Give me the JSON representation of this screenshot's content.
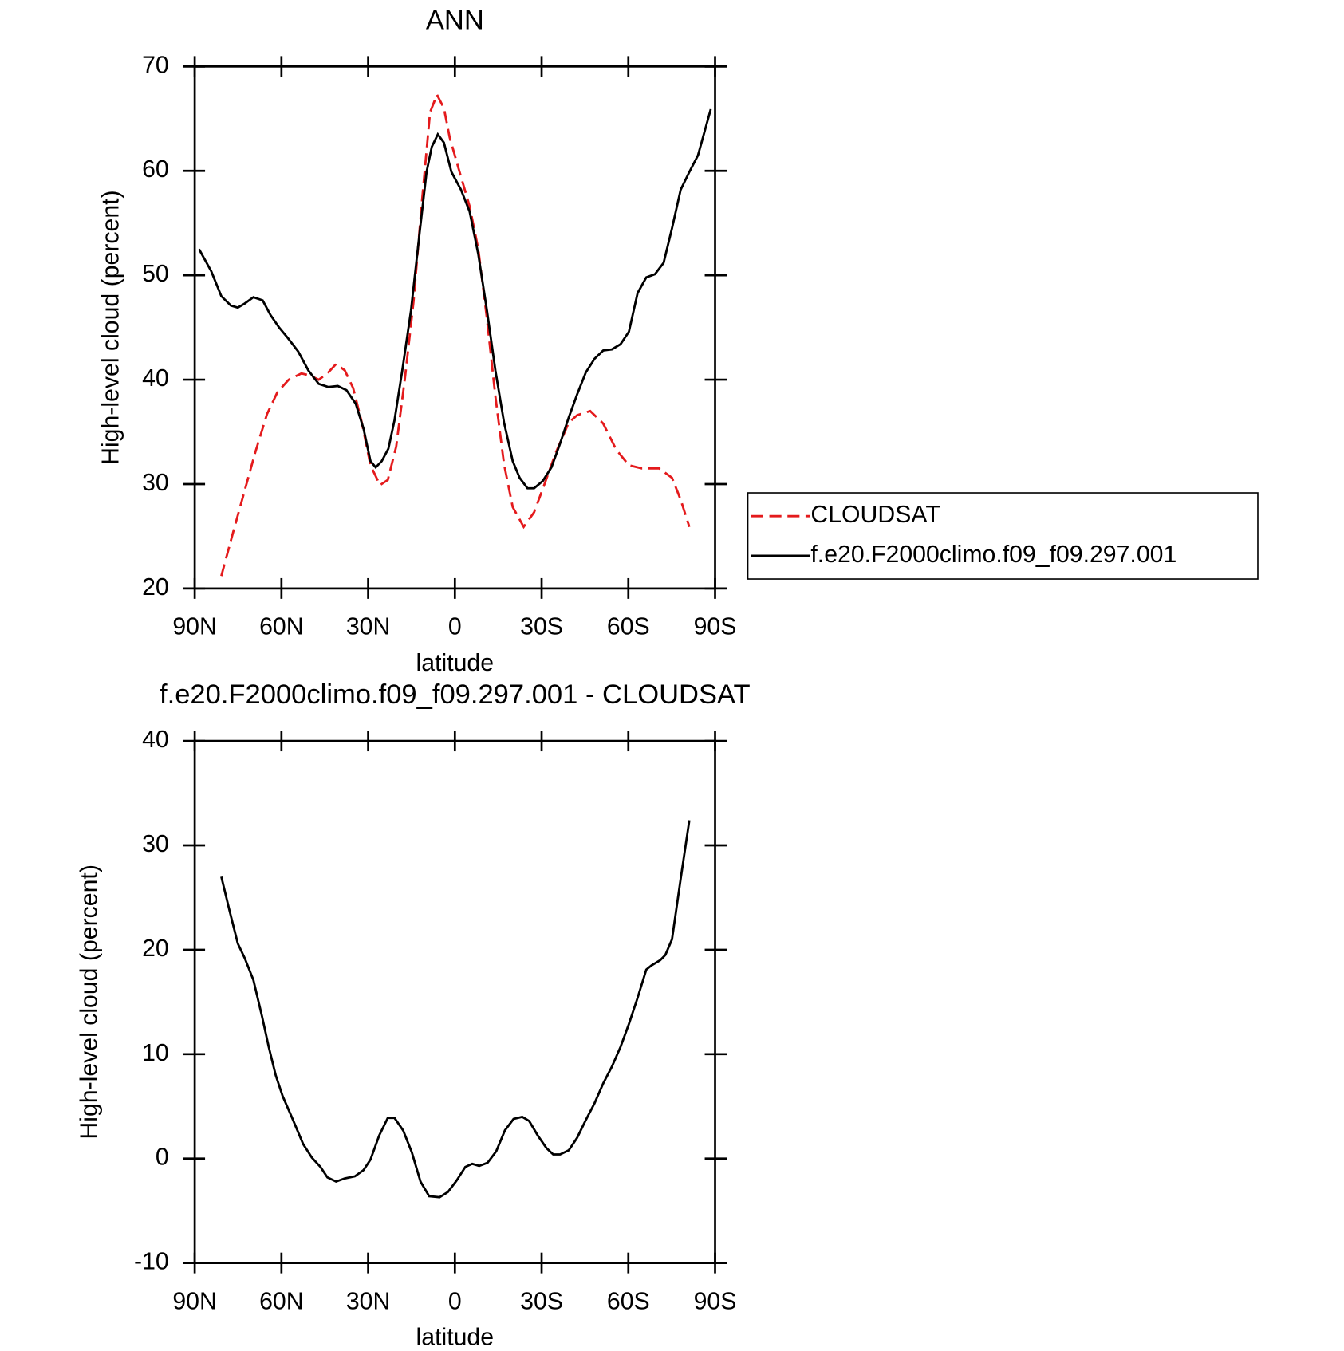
{
  "chart_data": [
    {
      "type": "line",
      "title": "ANN",
      "xlabel": "latitude",
      "ylabel": "High-level cloud (percent)",
      "xlim": [
        90,
        -90
      ],
      "xticks": [
        {
          "value": 90,
          "label": "90N"
        },
        {
          "value": 60,
          "label": "60N"
        },
        {
          "value": 30,
          "label": "30N"
        },
        0,
        {
          "value": -30,
          "label": "30S"
        },
        {
          "value": -60,
          "label": "60S"
        },
        {
          "value": -90,
          "label": "90S"
        }
      ],
      "ylim": [
        20,
        70
      ],
      "yticks": [
        20,
        30,
        40,
        50,
        60,
        70
      ],
      "legend": "right",
      "series": [
        {
          "name": "CLOUDSAT",
          "color": "#e41a1c",
          "dashed": true,
          "x": [
            80.8,
            76.9,
            73.0,
            69.1,
            65.0,
            61.4,
            57.5,
            53.1,
            50.1,
            47.1,
            44.1,
            41.1,
            38.1,
            35.2,
            32.2,
            29.2,
            25.9,
            23.2,
            20.3,
            17.3,
            14.3,
            11.3,
            8.6,
            6.2,
            3.8,
            1.8,
            -1.2,
            -5.1,
            -8.1,
            -11.1,
            -14.0,
            -17.0,
            -20.0,
            -23.8,
            -27.4,
            -31.0,
            -34.9,
            -39.4,
            -42.3,
            -46.8,
            -51.3,
            -55.8,
            -60.2,
            -64.7,
            -70.7,
            -75.1,
            -78.1,
            -81.1
          ],
          "values": [
            21.2,
            25.2,
            29.1,
            33.0,
            36.7,
            38.8,
            40.0,
            40.6,
            40.4,
            40.0,
            40.6,
            41.5,
            40.9,
            39.2,
            35.9,
            31.8,
            29.9,
            30.4,
            33.6,
            40.1,
            47.5,
            57.4,
            65.6,
            67.3,
            66.0,
            63.2,
            60.3,
            56.6,
            52.5,
            45.8,
            38.4,
            31.9,
            27.8,
            25.9,
            27.3,
            30.0,
            33.0,
            35.9,
            36.6,
            37.0,
            35.8,
            33.3,
            31.8,
            31.5,
            31.5,
            30.6,
            28.5,
            25.9
          ]
        },
        {
          "name": "f.e20.F2000climo.f09_f09.297.001",
          "color": "#000000",
          "dashed": false,
          "x": [
            88.5,
            84.3,
            80.8,
            77.5,
            75.1,
            72.7,
            69.7,
            66.5,
            63.8,
            60.8,
            57.8,
            54.2,
            50.7,
            47.1,
            43.8,
            40.5,
            37.5,
            34.3,
            31.6,
            29.2,
            27.4,
            25.3,
            23.0,
            20.9,
            18.2,
            15.2,
            12.2,
            9.8,
            8.0,
            5.9,
            3.8,
            1.2,
            -2.1,
            -5.1,
            -8.1,
            -11.1,
            -14.0,
            -17.0,
            -20.0,
            -22.4,
            -25.1,
            -27.4,
            -30.4,
            -33.4,
            -36.4,
            -39.4,
            -42.3,
            -45.3,
            -48.3,
            -51.3,
            -54.3,
            -57.3,
            -60.2,
            -63.2,
            -66.2,
            -69.2,
            -72.2,
            -75.1,
            -78.1,
            -81.1,
            -84.1,
            -88.5
          ],
          "values": [
            52.5,
            50.4,
            48.0,
            47.1,
            46.9,
            47.3,
            47.9,
            47.6,
            46.2,
            45.0,
            44.0,
            42.7,
            40.9,
            39.6,
            39.3,
            39.4,
            39.0,
            37.7,
            35.3,
            32.2,
            31.6,
            32.2,
            33.4,
            36.1,
            40.9,
            46.6,
            54.1,
            59.9,
            62.3,
            63.5,
            62.7,
            59.9,
            58.2,
            56.1,
            52.0,
            46.6,
            40.9,
            35.9,
            32.2,
            30.6,
            29.6,
            29.6,
            30.3,
            31.6,
            33.9,
            36.4,
            38.6,
            40.7,
            42.0,
            42.8,
            42.9,
            43.4,
            44.6,
            48.3,
            49.8,
            50.1,
            51.2,
            54.5,
            58.2,
            59.9,
            61.5,
            65.9
          ]
        }
      ]
    },
    {
      "type": "line",
      "title": "f.e20.F2000climo.f09_f09.297.001 - CLOUDSAT",
      "xlabel": "latitude",
      "ylabel": "High-level cloud (percent)",
      "xlim": [
        90,
        -90
      ],
      "xticks": [
        {
          "value": 90,
          "label": "90N"
        },
        {
          "value": 60,
          "label": "60N"
        },
        {
          "value": 30,
          "label": "30N"
        },
        0,
        {
          "value": -30,
          "label": "30S"
        },
        {
          "value": -60,
          "label": "60S"
        },
        {
          "value": -90,
          "label": "90S"
        }
      ],
      "ylim": [
        -10,
        40
      ],
      "yticks": [
        -10,
        0,
        10,
        20,
        30,
        40
      ],
      "series": [
        {
          "color": "#000000",
          "dashed": false,
          "x": [
            80.8,
            78.1,
            75.1,
            72.7,
            69.7,
            66.7,
            64.4,
            62.0,
            59.6,
            56.0,
            52.5,
            49.5,
            46.5,
            44.1,
            41.1,
            38.1,
            34.6,
            31.6,
            29.2,
            26.2,
            23.2,
            20.9,
            17.9,
            14.9,
            11.9,
            8.9,
            5.3,
            2.4,
            -0.6,
            -3.6,
            -6.0,
            -8.4,
            -11.3,
            -14.3,
            -17.3,
            -20.3,
            -23.3,
            -25.7,
            -28.7,
            -31.7,
            -34.0,
            -36.4,
            -39.4,
            -42.3,
            -45.3,
            -48.3,
            -51.3,
            -54.3,
            -57.3,
            -60.2,
            -63.2,
            -66.2,
            -68.0,
            -71.0,
            -72.8,
            -75.1,
            -78.1,
            -81.1
          ],
          "values": [
            27.0,
            23.9,
            20.6,
            19.2,
            17.1,
            13.6,
            10.7,
            8.0,
            6.0,
            3.7,
            1.4,
            0.1,
            -0.8,
            -1.8,
            -2.2,
            -1.9,
            -1.7,
            -1.1,
            -0.1,
            2.2,
            3.9,
            3.9,
            2.7,
            0.6,
            -2.2,
            -3.6,
            -3.7,
            -3.2,
            -2.1,
            -0.8,
            -0.5,
            -0.7,
            -0.4,
            0.7,
            2.7,
            3.8,
            4.0,
            3.6,
            2.2,
            1.0,
            0.4,
            0.4,
            0.8,
            2.0,
            3.7,
            5.3,
            7.2,
            8.8,
            10.7,
            12.9,
            15.4,
            18.1,
            18.5,
            19.0,
            19.5,
            21.0,
            26.8,
            32.4
          ]
        }
      ]
    }
  ]
}
